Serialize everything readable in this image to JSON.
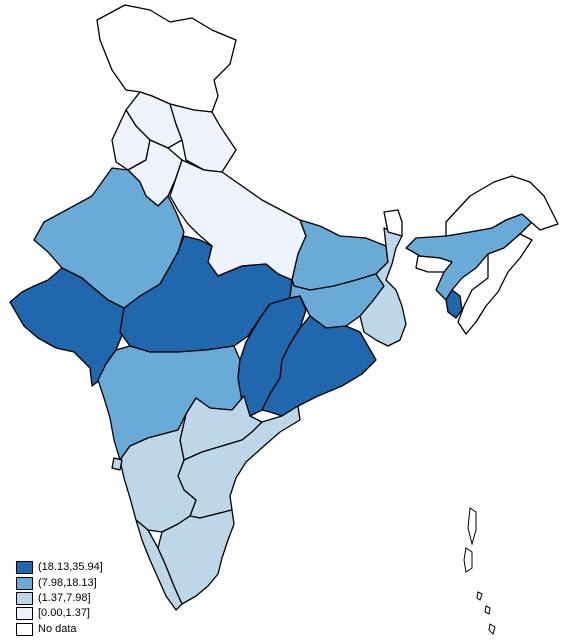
{
  "colors": {
    "c1": "#2167ad",
    "c2": "#6aaad6",
    "c3": "#bdd7e8",
    "c4": "#eff3fd",
    "nodata": "#ffffff"
  },
  "legend": [
    {
      "label": "(18.13,35.94]",
      "color": "#2167ad"
    },
    {
      "label": "(7.98,18.13]",
      "color": "#6aaad6"
    },
    {
      "label": "(1.37,7.98]",
      "color": "#bdd7e8"
    },
    {
      "label": "[0.00,1.37]",
      "color": "#eff3fd"
    },
    {
      "label": "No data",
      "color": "#ffffff"
    }
  ]
}
